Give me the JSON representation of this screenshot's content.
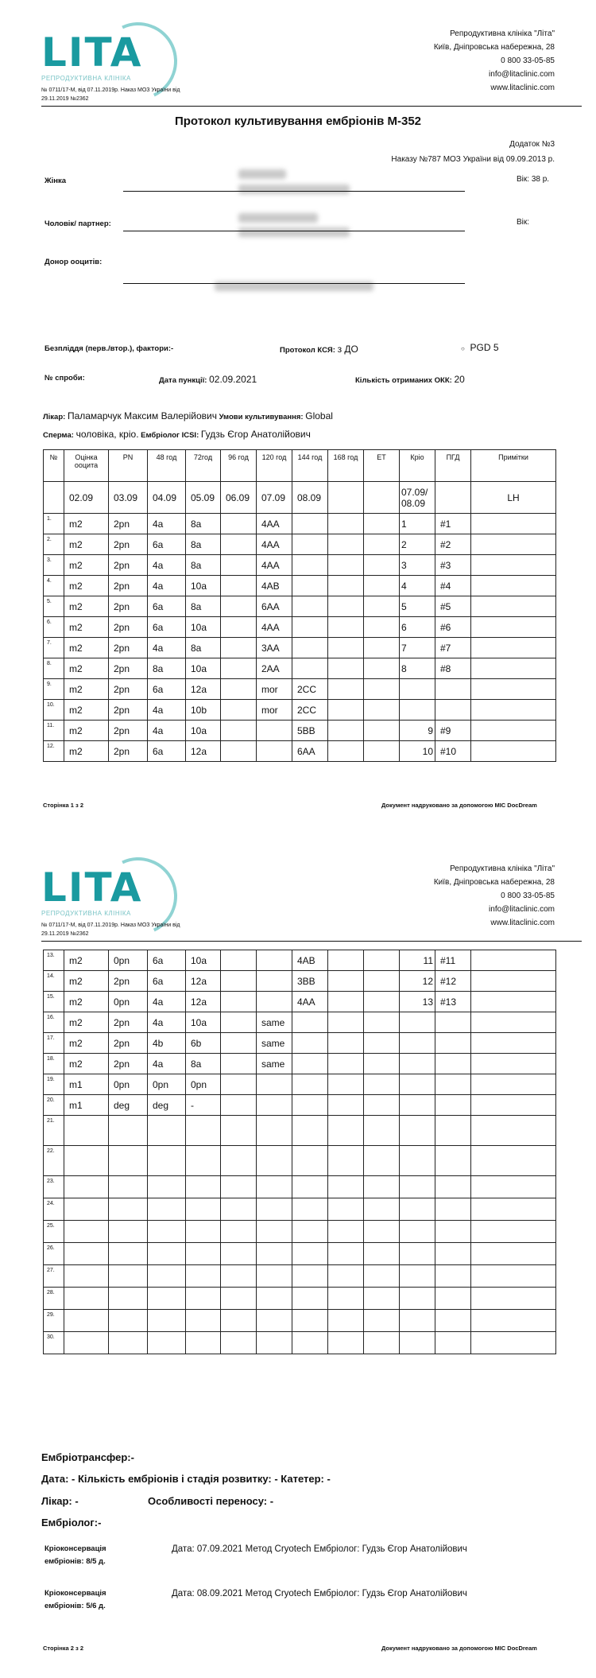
{
  "header": {
    "logo_text": "LITA",
    "logo_subtitle": "РЕПРОДУКТИВНА КЛІНІКА",
    "license": "№ 0711/17-М, від 07.11.2019р. Наказ МОЗ України від 29.11.2019 №2362",
    "clinic": "Репродуктивна клініка \"Літа\"",
    "address": "Київ, Дніпровська набережна, 28",
    "phone": "0 800 33-05-85",
    "email": "info@litaclinic.com",
    "website": "www.litaclinic.com",
    "brand_color": "#1a9aa0"
  },
  "title": "Протокол культивування ембріонів М-352",
  "appendix": "Додаток №3",
  "order": "Наказу №787 МОЗ України від 09.09.2013 р.",
  "fields": {
    "woman_label": "Жінка",
    "age_label": "Вік: 38 р.",
    "partner_label": "Чоловік/ партнер:",
    "partner_age_label": "Вік:",
    "donor_label": "Донор ооцитів:",
    "infertility_label": "Безпліддя (перв./втор.), фактори:",
    "infertility_value": "-",
    "ksya_label": "Протокол КСЯ:",
    "ksya_value": "з ДО",
    "pgd_value": "PGD 5",
    "attempt_label": "№ спроби:",
    "puncture_label": "Дата пункції:",
    "puncture_value": "02.09.2021",
    "okk_label": "Кількість отриманих ОКК:",
    "okk_value": "20",
    "doctor_label": "Лікар:",
    "doctor_value": "Паламарчук Максим Валерійович",
    "conditions_label": "Умови культивування:",
    "conditions_value": "Global",
    "sperm_label": "Сперма:",
    "sperm_value": "чоловіка, кріо.",
    "icsi_label": "Ембріолог ICSI:",
    "icsi_value": "Гудзь Єгор Анатолійович"
  },
  "table": {
    "headers": [
      "№",
      "Оцінка ооцита",
      "PN",
      "48 год",
      "72год",
      "96 год",
      "120 год",
      "144 год",
      "168 год",
      "ET",
      "Кріо",
      "ПГД",
      "Примітки"
    ],
    "dates": [
      "",
      "02.09",
      "03.09",
      "04.09",
      "05.09",
      "06.09",
      "07.09",
      "08.09",
      "",
      "",
      "07.09/ 08.09",
      "",
      "LH"
    ],
    "rows_page1": [
      [
        "1.",
        "m2",
        "2pn",
        "4a",
        "8a",
        "",
        "4AA",
        "",
        "",
        "",
        "1",
        "#1",
        ""
      ],
      [
        "2.",
        "m2",
        "2pn",
        "6a",
        "8a",
        "",
        "4AA",
        "",
        "",
        "",
        "2",
        "#2",
        ""
      ],
      [
        "3.",
        "m2",
        "2pn",
        "4a",
        "8a",
        "",
        "4AA",
        "",
        "",
        "",
        "3",
        "#3",
        ""
      ],
      [
        "4.",
        "m2",
        "2pn",
        "4a",
        "10a",
        "",
        "4AB",
        "",
        "",
        "",
        "4",
        "#4",
        ""
      ],
      [
        "5.",
        "m2",
        "2pn",
        "6a",
        "8a",
        "",
        "6AA",
        "",
        "",
        "",
        "5",
        "#5",
        ""
      ],
      [
        "6.",
        "m2",
        "2pn",
        "6a",
        "10a",
        "",
        "4AA",
        "",
        "",
        "",
        "6",
        "#6",
        ""
      ],
      [
        "7.",
        "m2",
        "2pn",
        "4a",
        "8a",
        "",
        "3AA",
        "",
        "",
        "",
        "7",
        "#7",
        ""
      ],
      [
        "8.",
        "m2",
        "2pn",
        "8a",
        "10a",
        "",
        "2AA",
        "",
        "",
        "",
        "8",
        "#8",
        ""
      ],
      [
        "9.",
        "m2",
        "2pn",
        "6a",
        "12a",
        "",
        "mor",
        "2CC",
        "",
        "",
        "",
        "",
        ""
      ],
      [
        "10.",
        "m2",
        "2pn",
        "4a",
        "10b",
        "",
        "mor",
        "2CC",
        "",
        "",
        "",
        "",
        ""
      ],
      [
        "11.",
        "m2",
        "2pn",
        "4a",
        "10a",
        "",
        "",
        "5BB",
        "",
        "",
        "9",
        "#9",
        ""
      ],
      [
        "12.",
        "m2",
        "2pn",
        "6a",
        "12a",
        "",
        "",
        "6AA",
        "",
        "",
        "10",
        "#10",
        ""
      ]
    ],
    "rows_page2": [
      [
        "13.",
        "m2",
        "0pn",
        "6a",
        "10a",
        "",
        "",
        "4AB",
        "",
        "",
        "11",
        "#11",
        ""
      ],
      [
        "14.",
        "m2",
        "2pn",
        "6a",
        "12a",
        "",
        "",
        "3BB",
        "",
        "",
        "12",
        "#12",
        ""
      ],
      [
        "15.",
        "m2",
        "0pn",
        "4a",
        "12a",
        "",
        "",
        "4AA",
        "",
        "",
        "13",
        "#13",
        ""
      ],
      [
        "16.",
        "m2",
        "2pn",
        "4a",
        "10a",
        "",
        "same",
        "",
        "",
        "",
        "",
        "",
        ""
      ],
      [
        "17.",
        "m2",
        "2pn",
        "4b",
        "6b",
        "",
        "same",
        "",
        "",
        "",
        "",
        "",
        ""
      ],
      [
        "18.",
        "m2",
        "2pn",
        "4a",
        "8a",
        "",
        "same",
        "",
        "",
        "",
        "",
        "",
        ""
      ],
      [
        "19.",
        "m1",
        "0pn",
        "0pn",
        "0pn",
        "",
        "",
        "",
        "",
        "",
        "",
        "",
        ""
      ],
      [
        "20.",
        "m1",
        "deg",
        "deg",
        "-",
        "",
        "",
        "",
        "",
        "",
        "",
        "",
        ""
      ],
      [
        "21.",
        "",
        "",
        "",
        "",
        "",
        "",
        "",
        "",
        "",
        "",
        "",
        ""
      ],
      [
        "22.",
        "",
        "",
        "",
        "",
        "",
        "",
        "",
        "",
        "",
        "",
        "",
        ""
      ],
      [
        "23.",
        "",
        "",
        "",
        "",
        "",
        "",
        "",
        "",
        "",
        "",
        "",
        ""
      ],
      [
        "24.",
        "",
        "",
        "",
        "",
        "",
        "",
        "",
        "",
        "",
        "",
        "",
        ""
      ],
      [
        "25.",
        "",
        "",
        "",
        "",
        "",
        "",
        "",
        "",
        "",
        "",
        "",
        ""
      ],
      [
        "26.",
        "",
        "",
        "",
        "",
        "",
        "",
        "",
        "",
        "",
        "",
        "",
        ""
      ],
      [
        "27.",
        "",
        "",
        "",
        "",
        "",
        "",
        "",
        "",
        "",
        "",
        "",
        ""
      ],
      [
        "28.",
        "",
        "",
        "",
        "",
        "",
        "",
        "",
        "",
        "",
        "",
        "",
        ""
      ],
      [
        "29.",
        "",
        "",
        "",
        "",
        "",
        "",
        "",
        "",
        "",
        "",
        "",
        ""
      ],
      [
        "30.",
        "",
        "",
        "",
        "",
        "",
        "",
        "",
        "",
        "",
        "",
        "",
        ""
      ]
    ]
  },
  "transfer": {
    "title": "Ембріотрансфер:-",
    "line2": "Дата: - Кількість ембріонів і стадія розвитку: - Катетер: -",
    "doctor": "Лікар: -",
    "features": "Особливості переносу: -",
    "embryologist": "Ембріолог:-"
  },
  "cryo": [
    {
      "label1": "Кріоконсервація",
      "label2": "ембріонів: 8/5 д.",
      "text": "Дата:  07.09.2021  Метод  Cryotech  Ембріолог:  Гудзь  Єгор  Анатолійович"
    },
    {
      "label1": "Кріоконсервація",
      "label2": "ембріонів: 5/6 д.",
      "text": "Дата: 08.09.2021 Метод Cryotech Ембріолог: Гудзь Єгор Анатолійович"
    }
  ],
  "footer": {
    "page1": "Сторінка 1 з 2",
    "page2": "Сторінка 2 з 2",
    "printed": "Документ надруковано за допомогою MIC DocDream"
  }
}
